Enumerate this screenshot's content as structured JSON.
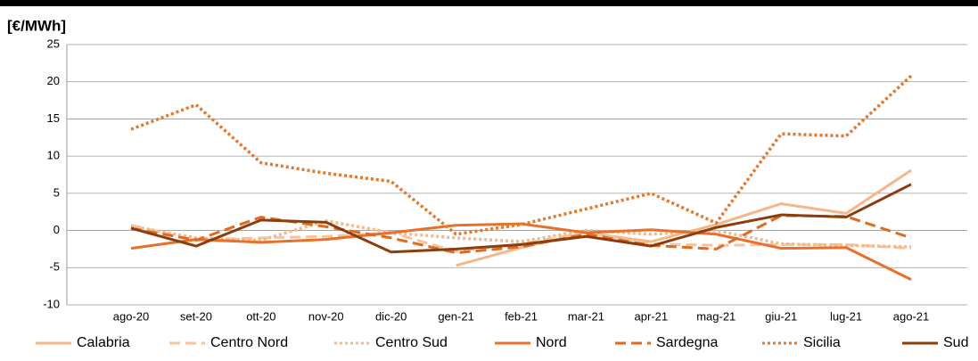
{
  "chart_data": {
    "type": "line",
    "y_label": "[€/MWh]",
    "categories": [
      "ago-20",
      "set-20",
      "ott-20",
      "nov-20",
      "dic-20",
      "gen-21",
      "feb-21",
      "mar-21",
      "apr-21",
      "mag-21",
      "giu-21",
      "lug-21",
      "ago-21"
    ],
    "ylim": [
      -10,
      25
    ],
    "yticks": [
      -10,
      -5,
      0,
      5,
      10,
      15,
      20,
      25
    ],
    "grid": true,
    "legend": "bottom",
    "series": [
      {
        "name": "Calabria",
        "color": "#f5b78a",
        "dash": "solid",
        "values": [
          null,
          null,
          null,
          null,
          null,
          -4.7,
          -2.3,
          -0.3,
          -1.5,
          0.8,
          3.6,
          2.3,
          8.1
        ]
      },
      {
        "name": "Centro Nord",
        "color": "#f7c39b",
        "dash": "dashed",
        "values": [
          0.7,
          -1.3,
          -1.0,
          -0.8,
          -0.3,
          -2.8,
          -1.8,
          -0.3,
          -1.8,
          -2.0,
          -1.9,
          -1.9,
          -2.4
        ]
      },
      {
        "name": "Centro Sud",
        "color": "#f3b98a",
        "dash": "dotted",
        "values": [
          0.6,
          -1.0,
          -1.3,
          1.3,
          -0.3,
          -1.0,
          -1.5,
          0.0,
          -0.5,
          0.0,
          -1.8,
          -2.0,
          -2.2
        ]
      },
      {
        "name": "Nord",
        "color": "#e8702a",
        "dash": "solid",
        "values": [
          -2.4,
          -1.2,
          -1.6,
          -1.2,
          -0.3,
          0.7,
          0.9,
          -0.3,
          0.1,
          -0.5,
          -2.4,
          -2.3,
          -6.6
        ]
      },
      {
        "name": "Sardegna",
        "color": "#e06a1e",
        "dash": "dashed",
        "values": [
          0.3,
          -1.3,
          1.8,
          0.5,
          -1.0,
          -3.0,
          -2.2,
          -0.5,
          -2.0,
          -2.5,
          2.0,
          1.9,
          -1.0
        ]
      },
      {
        "name": "Sicilia",
        "color": "#e5772b",
        "dash": "dotted",
        "values": [
          13.6,
          16.9,
          9.1,
          7.7,
          6.6,
          -0.5,
          0.8,
          2.9,
          5.0,
          1.0,
          13.0,
          12.7,
          20.8
        ]
      },
      {
        "name": "Sud",
        "color": "#8b3d0e",
        "dash": "solid",
        "values": [
          0.3,
          -2.1,
          1.4,
          1.1,
          -2.9,
          -2.5,
          -1.9,
          -0.8,
          -2.1,
          0.4,
          2.1,
          1.8,
          6.2
        ]
      }
    ]
  }
}
